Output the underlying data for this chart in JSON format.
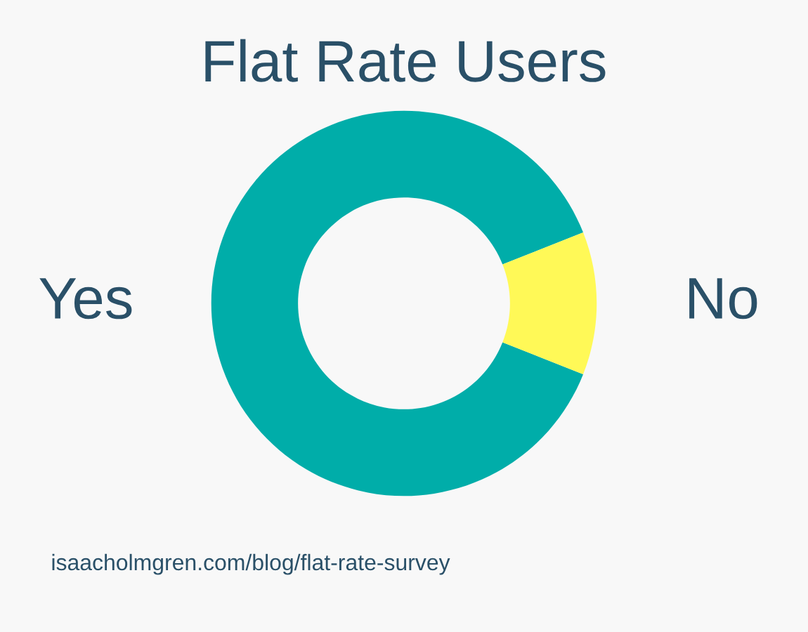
{
  "chart_data": {
    "type": "donut",
    "title": "Flat Rate Users",
    "categories": [
      "Yes",
      "No"
    ],
    "values": [
      88,
      12
    ],
    "colors": [
      "#00ada9",
      "#fff957"
    ],
    "annotations": [
      "isaacholmgren.com/blog/flat-rate-survey"
    ]
  }
}
